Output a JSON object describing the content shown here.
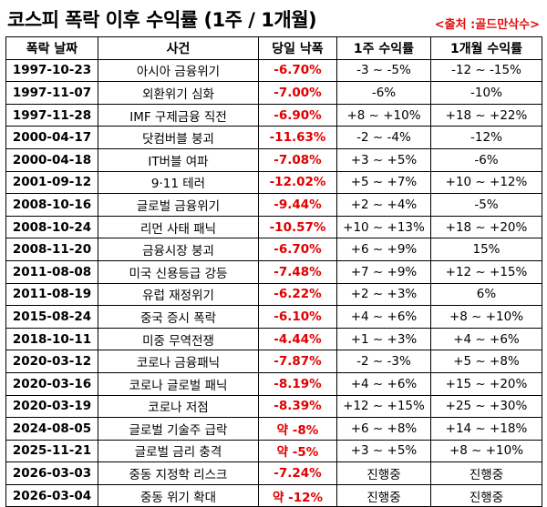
{
  "title": "코스피 폭락 이후 수익률 (1주 / 1개월)",
  "source": "<출처 :골드만삭수>",
  "headers": [
    "폭락 날짜",
    "사건",
    "당일 낙폭",
    "1주 수익률",
    "1개월 수익률"
  ],
  "rows": [
    {
      "date": "1997-10-23",
      "event": "아시아 금융위기",
      "drop": "-6.70%",
      "week": "-3 ~ -5%",
      "month": "-12 ~ -15%"
    },
    {
      "date": "1997-11-07",
      "event": "외환위기 심화",
      "drop": "-7.00%",
      "week": "-6%",
      "month": "-10%"
    },
    {
      "date": "1997-11-28",
      "event": "IMF 구제금융 직전",
      "drop": "-6.90%",
      "week": "+8 ~ +10%",
      "month": "+18 ~ +22%"
    },
    {
      "date": "2000-04-17",
      "event": "닷컴버블 붕괴",
      "drop": "-11.63%",
      "week": "-2 ~ -4%",
      "month": "-12%"
    },
    {
      "date": "2000-04-18",
      "event": "IT버블 여파",
      "drop": "-7.08%",
      "week": "+3 ~ +5%",
      "month": "-6%"
    },
    {
      "date": "2001-09-12",
      "event": "9·11 테러",
      "drop": "-12.02%",
      "week": "+5 ~ +7%",
      "month": "+10 ~ +12%"
    },
    {
      "date": "2008-10-16",
      "event": "글로벌 금융위기",
      "drop": "-9.44%",
      "week": "+2 ~ +4%",
      "month": "-5%"
    },
    {
      "date": "2008-10-24",
      "event": "리먼 사태 패닉",
      "drop": "-10.57%",
      "week": "+10 ~ +13%",
      "month": "+18 ~ +20%"
    },
    {
      "date": "2008-11-20",
      "event": "금융시장 붕괴",
      "drop": "-6.70%",
      "week": "+6 ~ +9%",
      "month": "15%"
    },
    {
      "date": "2011-08-08",
      "event": "미국 신용등급 강등",
      "drop": "-7.48%",
      "week": "+7 ~ +9%",
      "month": "+12 ~ +15%"
    },
    {
      "date": "2011-08-19",
      "event": "유럽 재정위기",
      "drop": "-6.22%",
      "week": "+2 ~ +3%",
      "month": "6%"
    },
    {
      "date": "2015-08-24",
      "event": "중국 증시 폭락",
      "drop": "-6.10%",
      "week": "+4 ~ +6%",
      "month": "+8 ~ +10%"
    },
    {
      "date": "2018-10-11",
      "event": "미중 무역전쟁",
      "drop": "-4.44%",
      "week": "+1 ~ +3%",
      "month": "+4 ~ +6%"
    },
    {
      "date": "2020-03-12",
      "event": "코로나 금융패닉",
      "drop": "-7.87%",
      "week": "-2 ~ -3%",
      "month": "+5 ~ +8%"
    },
    {
      "date": "2020-03-16",
      "event": "코로나 글로벌 패닉",
      "drop": "-8.19%",
      "week": "+4 ~ +6%",
      "month": "+15 ~ +20%"
    },
    {
      "date": "2020-03-19",
      "event": "코로나 저점",
      "drop": "-8.39%",
      "week": "+12 ~ +15%",
      "month": "+25 ~ +30%"
    },
    {
      "date": "2024-08-05",
      "event": "글로벌 기술주 급락",
      "drop": "약 -8%",
      "week": "+6 ~ +8%",
      "month": "+14 ~ +18%"
    },
    {
      "date": "2025-11-21",
      "event": "글로벌 금리 충격",
      "drop": "약 -5%",
      "week": "+3 ~ +5%",
      "month": "+8 ~ +10%"
    },
    {
      "date": "2026-03-03",
      "event": "중동 지정학 리스크",
      "drop": "-7.24%",
      "week": "진행중",
      "month": "진행중"
    },
    {
      "date": "2026-03-04",
      "event": "중동 위기 확대",
      "drop": "약 -12%",
      "week": "진행중",
      "month": "진행중"
    }
  ],
  "colors": {
    "drop_text": "#e00000",
    "source_text": "#e01010",
    "border": "#000000"
  }
}
